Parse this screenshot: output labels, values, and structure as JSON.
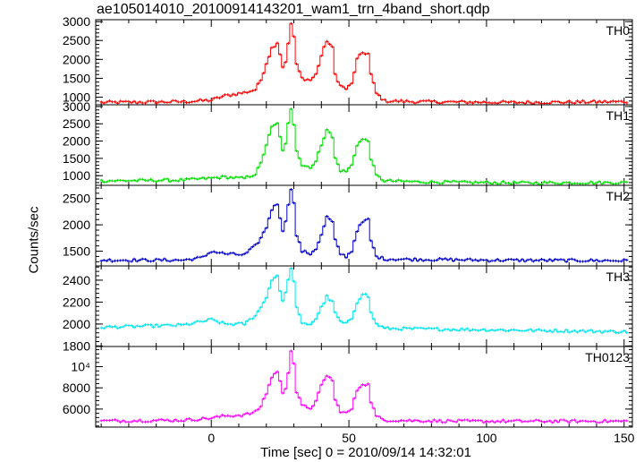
{
  "title": "ae105014010_20100914143201_wam1_trn_4band_short.qdp",
  "chart_data": {
    "type": "line",
    "ylabel": "Counts/sec",
    "xlabel": "Time [sec] 0 = 2010/09/14 14:32:01",
    "xlim": [
      -42,
      153
    ],
    "x_ticks": [
      0,
      50,
      100,
      150
    ],
    "grid": false,
    "x_sampling": {
      "start": -40,
      "end": 151,
      "step": 1
    },
    "panels": [
      {
        "name": "TH0",
        "color": "#ff0000",
        "ylim": [
          800,
          3050
        ],
        "y_ticks": [
          1000,
          1500,
          2000,
          2500,
          3000
        ],
        "y_tick_labels": [
          "1000",
          "1500",
          "2000",
          "2500",
          "3000"
        ],
        "keypoints": [
          [
            -40,
            860
          ],
          [
            -10,
            880
          ],
          [
            0,
            920
          ],
          [
            5,
            1040
          ],
          [
            12,
            1120
          ],
          [
            16,
            1200
          ],
          [
            18,
            1450
          ],
          [
            20,
            1900
          ],
          [
            22,
            2300
          ],
          [
            24,
            2450
          ],
          [
            25,
            2150
          ],
          [
            26,
            1800
          ],
          [
            27,
            1950
          ],
          [
            28,
            2400
          ],
          [
            29,
            2950
          ],
          [
            30,
            2600
          ],
          [
            31,
            1850
          ],
          [
            33,
            1500
          ],
          [
            36,
            1450
          ],
          [
            38,
            1600
          ],
          [
            40,
            2100
          ],
          [
            42,
            2500
          ],
          [
            44,
            2300
          ],
          [
            45,
            1600
          ],
          [
            47,
            1300
          ],
          [
            49,
            1220
          ],
          [
            51,
            1350
          ],
          [
            53,
            2000
          ],
          [
            55,
            2180
          ],
          [
            57,
            2150
          ],
          [
            58,
            1600
          ],
          [
            60,
            1100
          ],
          [
            63,
            900
          ],
          [
            75,
            880
          ],
          [
            110,
            860
          ],
          [
            151,
            880
          ]
        ]
      },
      {
        "name": "TH1",
        "color": "#00dd00",
        "ylim": [
          720,
          3050
        ],
        "y_ticks": [
          1000,
          1500,
          2000,
          2500,
          3000
        ],
        "y_tick_labels": [
          "1000",
          "1500",
          "2000",
          "2500",
          "3000"
        ],
        "keypoints": [
          [
            -40,
            850
          ],
          [
            -10,
            870
          ],
          [
            0,
            930
          ],
          [
            5,
            960
          ],
          [
            12,
            920
          ],
          [
            16,
            1050
          ],
          [
            18,
            1350
          ],
          [
            20,
            1900
          ],
          [
            22,
            2400
          ],
          [
            24,
            2500
          ],
          [
            25,
            2150
          ],
          [
            26,
            1700
          ],
          [
            27,
            1900
          ],
          [
            28,
            2500
          ],
          [
            29,
            2950
          ],
          [
            30,
            2500
          ],
          [
            31,
            1750
          ],
          [
            33,
            1300
          ],
          [
            36,
            1250
          ],
          [
            38,
            1400
          ],
          [
            40,
            1900
          ],
          [
            42,
            2350
          ],
          [
            44,
            2100
          ],
          [
            45,
            1500
          ],
          [
            47,
            1150
          ],
          [
            49,
            1120
          ],
          [
            51,
            1300
          ],
          [
            53,
            1900
          ],
          [
            55,
            2050
          ],
          [
            57,
            2000
          ],
          [
            58,
            1500
          ],
          [
            60,
            1000
          ],
          [
            63,
            850
          ],
          [
            75,
            820
          ],
          [
            110,
            790
          ],
          [
            151,
            800
          ]
        ]
      },
      {
        "name": "TH2",
        "color": "#0000cc",
        "ylim": [
          1220,
          2750
        ],
        "y_ticks": [
          1500,
          2000,
          2500
        ],
        "y_tick_labels": [
          "1500",
          "2000",
          "2500"
        ],
        "keypoints": [
          [
            -40,
            1330
          ],
          [
            -10,
            1330
          ],
          [
            -3,
            1380
          ],
          [
            0,
            1500
          ],
          [
            5,
            1450
          ],
          [
            12,
            1430
          ],
          [
            16,
            1600
          ],
          [
            18,
            1750
          ],
          [
            20,
            1950
          ],
          [
            22,
            2300
          ],
          [
            24,
            2400
          ],
          [
            25,
            2150
          ],
          [
            26,
            1900
          ],
          [
            27,
            2050
          ],
          [
            28,
            2400
          ],
          [
            29,
            2700
          ],
          [
            30,
            2400
          ],
          [
            31,
            1800
          ],
          [
            33,
            1500
          ],
          [
            36,
            1450
          ],
          [
            38,
            1550
          ],
          [
            40,
            1800
          ],
          [
            42,
            2150
          ],
          [
            44,
            2050
          ],
          [
            45,
            1700
          ],
          [
            47,
            1450
          ],
          [
            49,
            1400
          ],
          [
            51,
            1500
          ],
          [
            53,
            1900
          ],
          [
            55,
            2050
          ],
          [
            57,
            2100
          ],
          [
            58,
            1700
          ],
          [
            60,
            1400
          ],
          [
            63,
            1350
          ],
          [
            100,
            1330
          ],
          [
            151,
            1320
          ]
        ]
      },
      {
        "name": "TH3",
        "color": "#00e5ee",
        "ylim": [
          1795,
          2530
        ],
        "y_ticks": [
          1800,
          2000,
          2200,
          2400
        ],
        "y_tick_labels": [
          "1800",
          "2000",
          "2200",
          "2400"
        ],
        "keypoints": [
          [
            -40,
            1970
          ],
          [
            -10,
            1990
          ],
          [
            0,
            2040
          ],
          [
            5,
            2000
          ],
          [
            12,
            2000
          ],
          [
            16,
            2080
          ],
          [
            18,
            2150
          ],
          [
            20,
            2250
          ],
          [
            22,
            2400
          ],
          [
            24,
            2450
          ],
          [
            25,
            2300
          ],
          [
            26,
            2200
          ],
          [
            27,
            2300
          ],
          [
            28,
            2400
          ],
          [
            29,
            2500
          ],
          [
            30,
            2400
          ],
          [
            31,
            2150
          ],
          [
            33,
            2000
          ],
          [
            36,
            2000
          ],
          [
            38,
            2050
          ],
          [
            40,
            2150
          ],
          [
            42,
            2250
          ],
          [
            44,
            2200
          ],
          [
            45,
            2100
          ],
          [
            47,
            2020
          ],
          [
            49,
            2000
          ],
          [
            51,
            2050
          ],
          [
            53,
            2200
          ],
          [
            55,
            2280
          ],
          [
            57,
            2250
          ],
          [
            58,
            2100
          ],
          [
            60,
            2000
          ],
          [
            63,
            1960
          ],
          [
            151,
            1930
          ]
        ]
      },
      {
        "name": "TH0123",
        "color": "#ff00ff",
        "ylim": [
          4300,
          11900
        ],
        "y_ticks": [
          6000,
          8000,
          10000
        ],
        "y_tick_labels": [
          "6000",
          "8000",
          "10⁴"
        ],
        "keypoints": [
          [
            -40,
            4880
          ],
          [
            -10,
            4950
          ],
          [
            0,
            5150
          ],
          [
            5,
            5350
          ],
          [
            12,
            5450
          ],
          [
            16,
            5700
          ],
          [
            18,
            6300
          ],
          [
            20,
            7500
          ],
          [
            22,
            9000
          ],
          [
            24,
            9600
          ],
          [
            25,
            8600
          ],
          [
            26,
            7400
          ],
          [
            27,
            8000
          ],
          [
            28,
            9500
          ],
          [
            29,
            11600
          ],
          [
            30,
            10300
          ],
          [
            31,
            7600
          ],
          [
            33,
            6300
          ],
          [
            36,
            6100
          ],
          [
            38,
            6700
          ],
          [
            40,
            8200
          ],
          [
            42,
            9200
          ],
          [
            44,
            8700
          ],
          [
            45,
            6800
          ],
          [
            47,
            5800
          ],
          [
            49,
            5600
          ],
          [
            51,
            6000
          ],
          [
            53,
            7800
          ],
          [
            55,
            8400
          ],
          [
            57,
            8300
          ],
          [
            58,
            6700
          ],
          [
            60,
            5300
          ],
          [
            63,
            4950
          ],
          [
            90,
            4850
          ],
          [
            151,
            4850
          ]
        ]
      }
    ]
  }
}
